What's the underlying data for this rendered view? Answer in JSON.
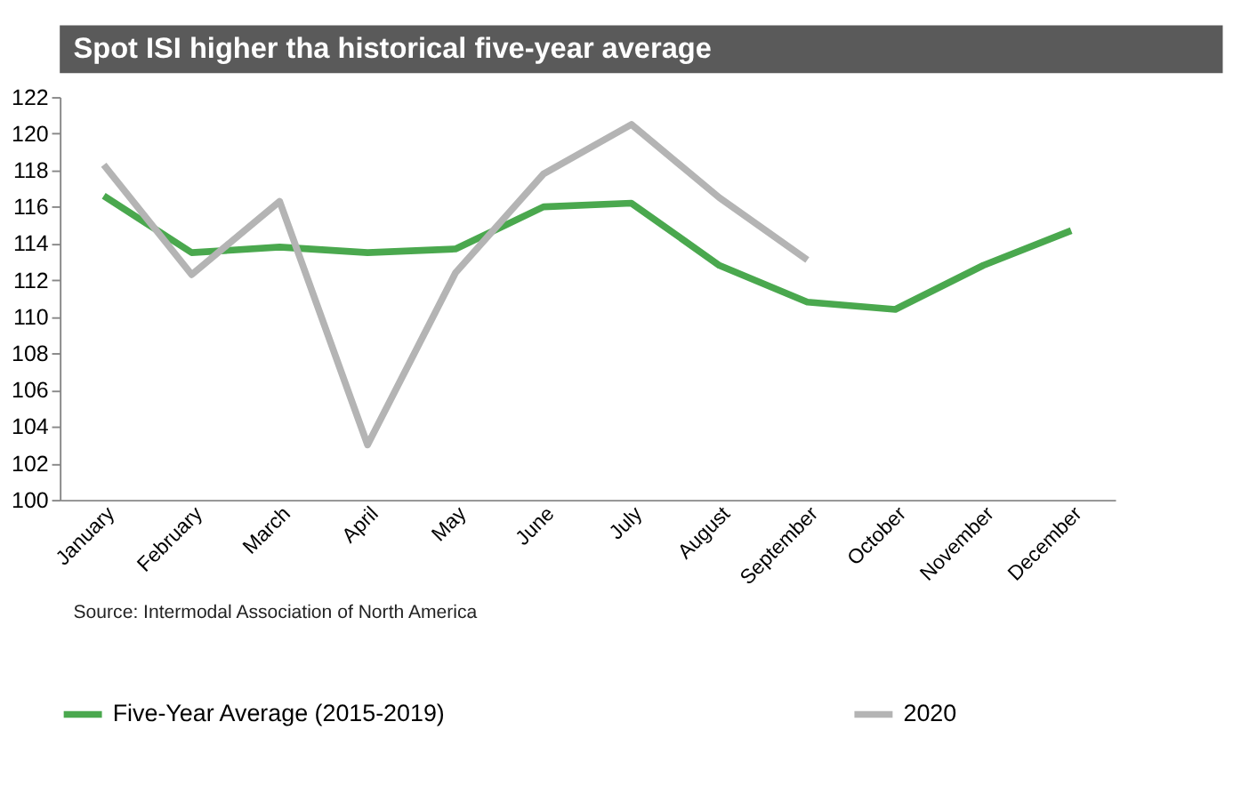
{
  "chart_data": {
    "type": "line",
    "title": "Spot ISI higher tha historical five-year average",
    "categories": [
      "January",
      "February",
      "March",
      "April",
      "May",
      "June",
      "July",
      "August",
      "September",
      "October",
      "November",
      "December"
    ],
    "series": [
      {
        "name": "Five-Year Average (2015-2019)",
        "color": "#4aa84e",
        "values": [
          116.6,
          113.5,
          113.8,
          113.5,
          113.7,
          116.0,
          116.2,
          112.8,
          110.8,
          110.4,
          112.8,
          114.7
        ]
      },
      {
        "name": "2020",
        "color": "#b4b4b4",
        "values": [
          118.3,
          112.3,
          116.3,
          103.0,
          112.4,
          117.8,
          120.5,
          116.5,
          113.1,
          null,
          null,
          null
        ]
      }
    ],
    "ylim": [
      100,
      122
    ],
    "yticks": [
      100,
      102,
      104,
      106,
      108,
      110,
      112,
      114,
      116,
      118,
      120,
      122
    ],
    "grid": false,
    "legend": "bottom",
    "marker": "none",
    "line_style": "solid",
    "annotations": [
      "Source: Intermodal Association of North America"
    ]
  }
}
